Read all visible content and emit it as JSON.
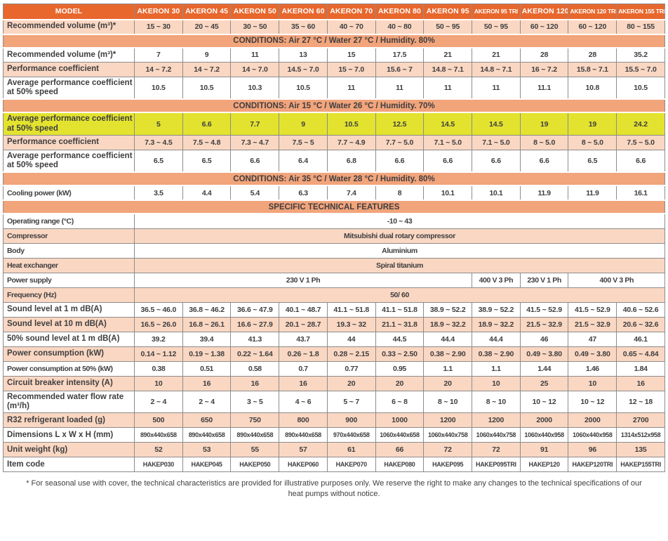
{
  "header": {
    "model_label": "MODEL",
    "models": [
      "AKERON 30",
      "AKERON 45",
      "AKERON 50",
      "AKERON 60",
      "AKERON 70",
      "AKERON 80",
      "AKERON 95",
      "AKERON 95 TRI",
      "AKERON 120",
      "AKERON 120 TRI",
      "AKERON 155 TRI"
    ]
  },
  "colors": {
    "header_orange": "#e8672d",
    "band_salmon": "#f2a47b",
    "row_peach": "#fad7c2",
    "highlight_yellow": "#e3e32f",
    "text": "#3e3e40",
    "grid": "#8c8c8c"
  },
  "table": {
    "rows": [
      {
        "t": "data",
        "bg": "peach",
        "label": "Recommended volume (m³)*",
        "values": [
          "15 ~ 30",
          "20 ~ 45",
          "30 ~ 50",
          "35 ~ 60",
          "40 ~ 70",
          "40 ~ 80",
          "50 ~ 95",
          "50 ~ 95",
          "60 ~ 120",
          "60 ~ 120",
          "80 ~ 155"
        ]
      },
      {
        "t": "band",
        "text": "CONDITIONS: Air 27 °C / Water 27 °C / Humidity. 80%"
      },
      {
        "t": "data",
        "bg": "white",
        "label": "Recommended volume (m³)*",
        "values": [
          "7",
          "9",
          "11",
          "13",
          "15",
          "17.5",
          "21",
          "21",
          "28",
          "28",
          "35.2"
        ]
      },
      {
        "t": "data",
        "bg": "peach",
        "label": "Performance coefficient",
        "values": [
          "14 ~ 7.2",
          "14 ~ 7.2",
          "14 ~ 7.0",
          "14.5 ~ 7.0",
          "15 ~ 7.0",
          "15.6 ~ 7",
          "14.8 ~ 7.1",
          "14.8 ~ 7.1",
          "16 ~ 7.2",
          "15.8 ~ 7.1",
          "15.5 ~ 7.0"
        ]
      },
      {
        "t": "data",
        "bg": "white",
        "label": "Average performance coefficient at 50% speed",
        "values": [
          "10.5",
          "10.5",
          "10.3",
          "10.5",
          "11",
          "11",
          "11",
          "11",
          "11.1",
          "10.8",
          "10.5"
        ]
      },
      {
        "t": "band",
        "text": "CONDITIONS: Air 15 °C / Water 26 °C / Humidity. 70%"
      },
      {
        "t": "data",
        "bg": "yellow",
        "label": "Average performance coefficient at 50% speed",
        "values": [
          "5",
          "6.6",
          "7.7",
          "9",
          "10.5",
          "12.5",
          "14.5",
          "14.5",
          "19",
          "19",
          "24.2"
        ]
      },
      {
        "t": "data",
        "bg": "peach",
        "label": "Performance coefficient",
        "values": [
          "7.3 ~ 4.5",
          "7.5 ~ 4.8",
          "7.3 ~ 4.7",
          "7.5 ~ 5",
          "7.7 ~ 4.9",
          "7.7 ~ 5.0",
          "7.1 ~ 5.0",
          "7.1 ~ 5.0",
          "8 ~ 5.0",
          "8 ~ 5.0",
          "7.5 ~ 5.0"
        ]
      },
      {
        "t": "data",
        "bg": "white",
        "label": "Average performance coefficient at 50% speed",
        "values": [
          "6.5",
          "6.5",
          "6.6",
          "6.4",
          "6.8",
          "6.6",
          "6.6",
          "6.6",
          "6.6",
          "6.5",
          "6.6"
        ]
      },
      {
        "t": "band",
        "text": "CONDITIONS: Air 35 °C / Water 28 °C / Humidity. 80%"
      },
      {
        "t": "data",
        "bg": "white",
        "cond": true,
        "label": "Cooling power (kW)",
        "values": [
          "3.5",
          "4.4",
          "5.4",
          "6.3",
          "7.4",
          "8",
          "10.1",
          "10.1",
          "11.9",
          "11.9",
          "16.1"
        ]
      },
      {
        "t": "band",
        "text": "SPECIFIC TECHNICAL FEATURES"
      },
      {
        "t": "span",
        "bg": "white",
        "cond": true,
        "label": "Operating range (°C)",
        "value": "-10 ~ 43"
      },
      {
        "t": "span",
        "bg": "peach",
        "cond": true,
        "label": "Compressor",
        "value": "Mitsubishi dual rotary compressor"
      },
      {
        "t": "span",
        "bg": "white",
        "cond": true,
        "label": "Body",
        "value": "Aluminium"
      },
      {
        "t": "span",
        "bg": "peach",
        "cond": true,
        "label": "Heat exchanger",
        "value": "Spiral titanium"
      },
      {
        "t": "multi",
        "bg": "white",
        "cond": true,
        "label": "Power supply",
        "cells": [
          {
            "text": "230 V 1 Ph",
            "span": 7
          },
          {
            "text": "400 V 3 Ph",
            "span": 1
          },
          {
            "text": "230 V 1 Ph",
            "span": 1
          },
          {
            "text": "400 V 3 Ph",
            "span": 2
          }
        ]
      },
      {
        "t": "span",
        "bg": "peach",
        "cond": true,
        "label": "Frequency (Hz)",
        "value": "50/ 60"
      },
      {
        "t": "data",
        "bg": "white",
        "label": "Sound level at 1 m dB(A)",
        "values": [
          "36.5 ~ 46.0",
          "36.8 ~ 46.2",
          "36.6 ~ 47.9",
          "40.1 ~ 48.7",
          "41.1 ~ 51.8",
          "41.1 ~ 51.8",
          "38.9 ~ 52.2",
          "38.9 ~ 52.2",
          "41.5 ~ 52.9",
          "41.5 ~ 52.9",
          "40.6 ~ 52.6"
        ]
      },
      {
        "t": "data",
        "bg": "peach",
        "label": "Sound level at 10 m dB(A)",
        "values": [
          "16.5 ~ 26.0",
          "16.8 ~ 26.1",
          "16.6 ~ 27.9",
          "20.1 ~ 28.7",
          "19.3 ~ 32",
          "21.1 ~ 31.8",
          "18.9 ~ 32.2",
          "18.9 ~ 32.2",
          "21.5 ~ 32.9",
          "21.5 ~ 32.9",
          "20.6 ~ 32.6"
        ]
      },
      {
        "t": "data",
        "bg": "white",
        "label": "50% sound level at 1 m dB(A)",
        "values": [
          "39.2",
          "39.4",
          "41.3",
          "43.7",
          "44",
          "44.5",
          "44.4",
          "44.4",
          "46",
          "47",
          "46.1"
        ]
      },
      {
        "t": "data",
        "bg": "peach",
        "label": "Power consumption (kW)",
        "values": [
          "0.14 ~ 1.12",
          "0.19 ~ 1.38",
          "0.22 ~ 1.64",
          "0.26 ~ 1.8",
          "0.28 ~ 2.15",
          "0.33 ~ 2.50",
          "0.38 ~ 2.90",
          "0.38 ~ 2.90",
          "0.49 ~ 3.80",
          "0.49 ~ 3.80",
          "0.65 ~ 4.84"
        ]
      },
      {
        "t": "data",
        "bg": "white",
        "cond": true,
        "label": "Power consumption at 50% (kW)",
        "values": [
          "0.38",
          "0.51",
          "0.58",
          "0.7",
          "0.77",
          "0.95",
          "1.1",
          "1.1",
          "1.44",
          "1.46",
          "1.84"
        ]
      },
      {
        "t": "data",
        "bg": "peach",
        "label": "Circuit breaker intensity (A)",
        "values": [
          "10",
          "16",
          "16",
          "16",
          "20",
          "20",
          "20",
          "10",
          "25",
          "10",
          "16"
        ]
      },
      {
        "t": "data",
        "bg": "white",
        "label": "Recommended water flow rate (m³/h)",
        "values": [
          "2 ~ 4",
          "2 ~ 4",
          "3 ~ 5",
          "4 ~ 6",
          "5 ~ 7",
          "6 ~ 8",
          "8 ~ 10",
          "8 ~ 10",
          "10 ~ 12",
          "10 ~ 12",
          "12 ~ 18"
        ]
      },
      {
        "t": "data",
        "bg": "peach",
        "label": "R32 refrigerant loaded (g)",
        "values": [
          "500",
          "650",
          "750",
          "800",
          "900",
          "1000",
          "1200",
          "1200",
          "2000",
          "2000",
          "2700"
        ]
      },
      {
        "t": "data",
        "bg": "white",
        "small": true,
        "label": "Dimensions L x W x H (mm)",
        "values": [
          "890x440x658",
          "890x440x658",
          "890x440x658",
          "890x440x658",
          "970x440x658",
          "1060x440x658",
          "1060x440x758",
          "1060x440x758",
          "1060x440x958",
          "1060x440x958",
          "1314x512x958"
        ]
      },
      {
        "t": "data",
        "bg": "peach",
        "label": "Unit weight (kg)",
        "values": [
          "52",
          "53",
          "55",
          "57",
          "61",
          "66",
          "72",
          "72",
          "91",
          "96",
          "135"
        ]
      },
      {
        "t": "data",
        "bg": "white",
        "small": true,
        "label": "Item code",
        "values": [
          "HAKEP030",
          "HAKEP045",
          "HAKEP050",
          "HAKEP060",
          "HAKEP070",
          "HAKEP080",
          "HAKEP095",
          "HAKEP095TRI",
          "HAKEP120",
          "HAKEP120TRI",
          "HAKEP155TRI"
        ]
      }
    ]
  },
  "footnote": "* For seasonal use with cover, the technical characteristics are provided for illustrative purposes only. We reserve the right to make any changes to the technical specifications of our heat pumps without notice."
}
